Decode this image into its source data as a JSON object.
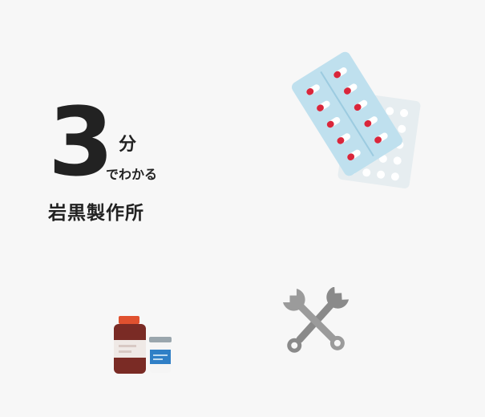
{
  "title": {
    "number": "3",
    "unit": "分",
    "suffix": "でわかる",
    "company": "岩黒製作所"
  },
  "illustrations": {
    "pills": "blister-pack-icon",
    "bottles": "medicine-bottle-icon",
    "tools": "wrench-tools-icon"
  },
  "colors": {
    "text": "#222222",
    "blister_blue": "#bfe0ee",
    "capsule_red": "#d9263b",
    "bottle_brown": "#7a2b25",
    "tool_gray": "#8a8a8a"
  }
}
